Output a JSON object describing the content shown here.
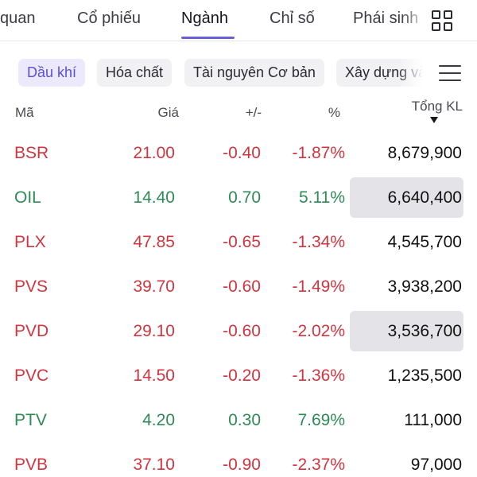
{
  "tabs": [
    {
      "label": "quan",
      "active": false
    },
    {
      "label": "Cổ phiếu",
      "active": false
    },
    {
      "label": "Ngành",
      "active": true
    },
    {
      "label": "Chỉ số",
      "active": false
    },
    {
      "label": "Phái sinh",
      "active": false
    }
  ],
  "accent_color": "#6b5fd9",
  "sectors": [
    {
      "label": "Dầu khí",
      "active": true
    },
    {
      "label": "Hóa chất",
      "active": false
    },
    {
      "label": "Tài nguyên Cơ bản",
      "active": false
    },
    {
      "label": "Xây dựng và",
      "active": false
    }
  ],
  "table": {
    "headers": {
      "symbol": "Mã",
      "price": "Giá",
      "change": "+/-",
      "percent": "%",
      "volume": "Tổng KL"
    },
    "sort": {
      "column": "volume",
      "direction": "desc"
    },
    "rows": [
      {
        "symbol": "BSR",
        "price": "21.00",
        "change": "-0.40",
        "percent": "-1.87%",
        "volume": "8,679,900",
        "trend": "down",
        "highlight": false
      },
      {
        "symbol": "OIL",
        "price": "14.40",
        "change": "0.70",
        "percent": "5.11%",
        "volume": "6,640,400",
        "trend": "up",
        "highlight": true
      },
      {
        "symbol": "PLX",
        "price": "47.85",
        "change": "-0.65",
        "percent": "-1.34%",
        "volume": "4,545,700",
        "trend": "down",
        "highlight": false
      },
      {
        "symbol": "PVS",
        "price": "39.70",
        "change": "-0.60",
        "percent": "-1.49%",
        "volume": "3,938,200",
        "trend": "down",
        "highlight": false
      },
      {
        "symbol": "PVD",
        "price": "29.10",
        "change": "-0.60",
        "percent": "-2.02%",
        "volume": "3,536,700",
        "trend": "down",
        "highlight": true
      },
      {
        "symbol": "PVC",
        "price": "14.50",
        "change": "-0.20",
        "percent": "-1.36%",
        "volume": "1,235,500",
        "trend": "down",
        "highlight": false
      },
      {
        "symbol": "PTV",
        "price": "4.20",
        "change": "0.30",
        "percent": "7.69%",
        "volume": "111,000",
        "trend": "up",
        "highlight": false
      },
      {
        "symbol": "PVB",
        "price": "37.10",
        "change": "-0.90",
        "percent": "-2.37%",
        "volume": "97,000",
        "trend": "down",
        "highlight": false
      }
    ]
  }
}
